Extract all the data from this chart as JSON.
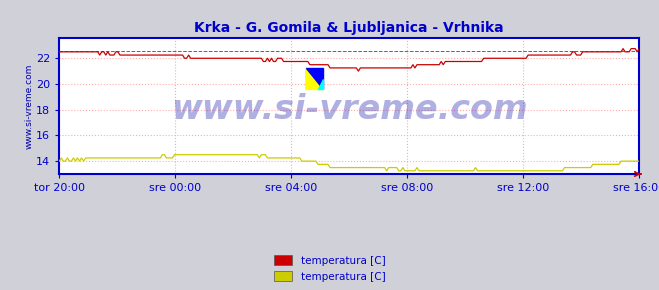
{
  "title": "Krka - G. Gomila & Ljubljanica - Vrhnika",
  "title_color": "#0000cc",
  "title_fontsize": 10,
  "bg_color": "#d0d0d8",
  "plot_bg_color": "#ffffff",
  "grid_color": "#ffaaaa",
  "x_labels": [
    "tor 20:00",
    "sre 00:00",
    "sre 04:00",
    "sre 08:00",
    "sre 12:00",
    "sre 16:00"
  ],
  "y_ticks": [
    14,
    16,
    18,
    20,
    22
  ],
  "ylim": [
    13.0,
    23.6
  ],
  "xlim": [
    0.0,
    1.0
  ],
  "line1_color": "#cc0000",
  "line2_color": "#cccc00",
  "ref_line_color": "#cc0000",
  "axis_color": "#0000cc",
  "tick_color": "#0000cc",
  "tick_fontsize": 8,
  "legend1_label": "temperatura [C]",
  "legend2_label": "temperatura [C]",
  "legend1_color": "#cc0000",
  "legend2_color": "#cccc00",
  "watermark": "www.si-vreme.com",
  "watermark_color": "#1a1aaa",
  "watermark_alpha": 0.35,
  "watermark_fontsize": 24,
  "ylabel_text": "www.si-vreme.com",
  "ylabel_color": "#0000aa",
  "ylabel_fontsize": 6.5,
  "ref_val": 22.55
}
